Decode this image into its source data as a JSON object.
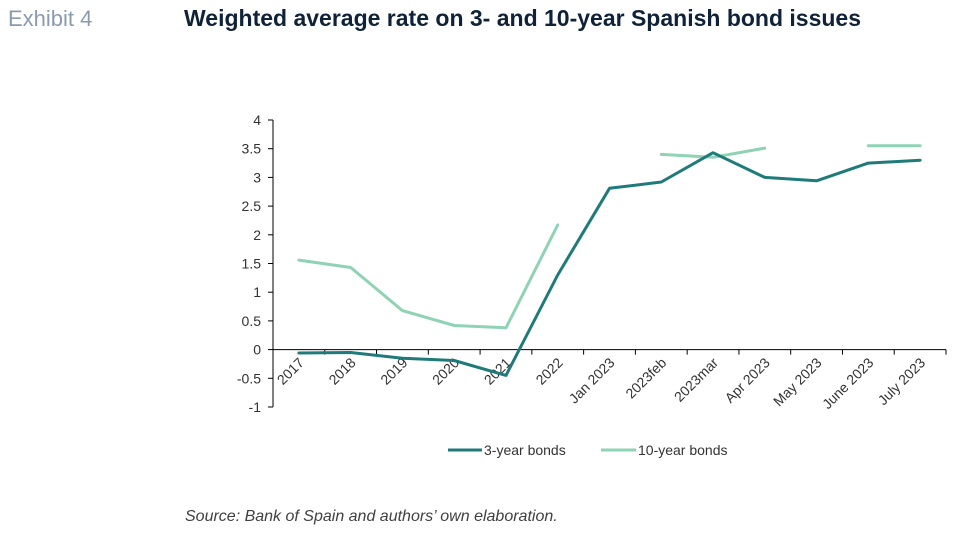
{
  "header": {
    "exhibit": "Exhibit 4",
    "title": "Weighted average rate on 3- and 10-year Spanish bond issues"
  },
  "source": "Source: Bank of Spain and authors’ own elaboration.",
  "colors": {
    "series_3y": "#1f7a7a",
    "series_10y": "#8fd3b4",
    "axis": "#000000"
  },
  "chart_data": {
    "type": "line",
    "categories": [
      "2017",
      "2018",
      "2019",
      "2020",
      "2021",
      "2022",
      "Jan 2023",
      "2023feb",
      "2023mar",
      "Apr 2023",
      "May 2023",
      "June 2023",
      "July 2023"
    ],
    "y_ticks": [
      "4",
      "3.5",
      "3",
      "2.5",
      "2",
      "1.5",
      "1",
      "0.5",
      "0",
      "-0.5",
      "-1"
    ],
    "ylim": [
      -1,
      4
    ],
    "grid": false,
    "legend_position": "bottom",
    "series": [
      {
        "name": "3-year bonds",
        "values": [
          -0.06,
          -0.05,
          -0.15,
          -0.19,
          -0.45,
          1.3,
          2.81,
          2.92,
          3.43,
          3.0,
          2.94,
          3.25,
          3.3
        ]
      },
      {
        "name": "10-year bonds",
        "values": [
          1.56,
          1.43,
          0.68,
          0.42,
          0.38,
          2.17,
          null,
          3.4,
          3.35,
          3.51,
          null,
          3.55,
          3.55
        ]
      }
    ]
  }
}
